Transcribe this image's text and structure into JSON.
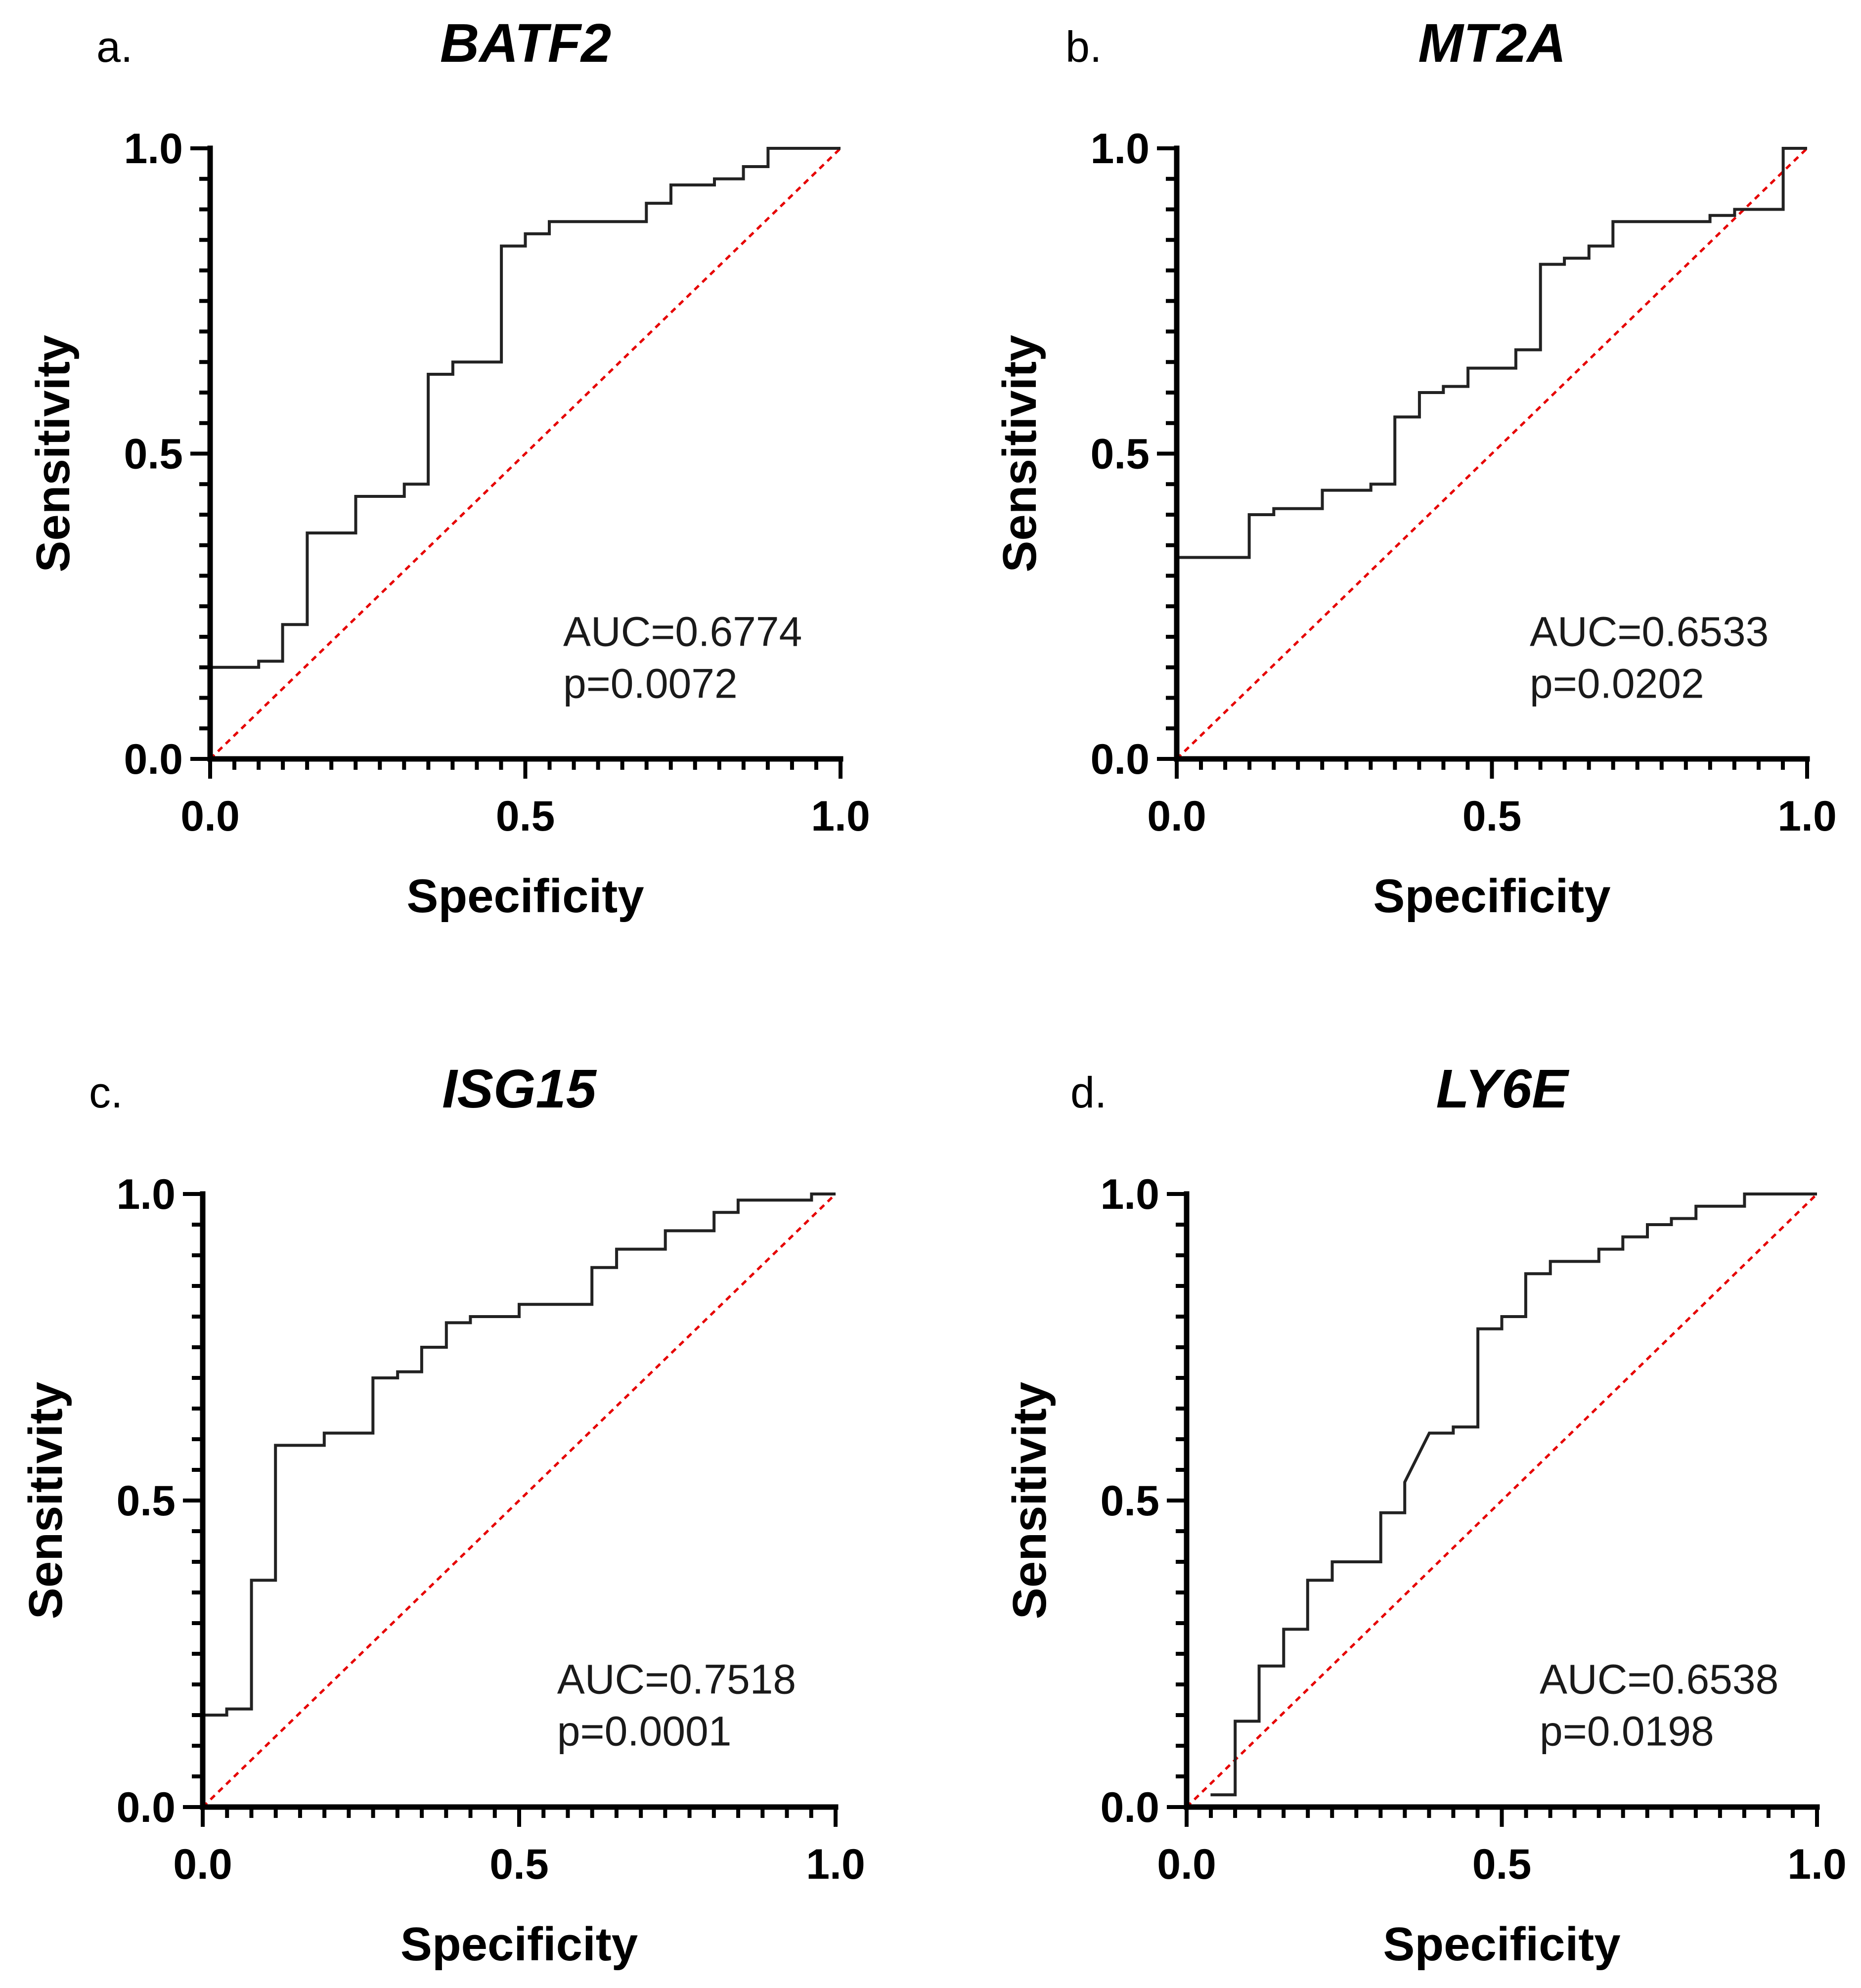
{
  "chart_data": [
    {
      "type": "line",
      "panel_label": "a.",
      "title": "BATF2",
      "xlabel": "Specificity",
      "ylabel": "Sensitivity",
      "xlim": [
        0,
        1
      ],
      "ylim": [
        0,
        1
      ],
      "x_ticks": [
        "0.0",
        "0.5",
        "1.0"
      ],
      "y_ticks": [
        "0.0",
        "0.5",
        "1.0"
      ],
      "annotation": {
        "auc": "AUC=0.6774",
        "p": "p=0.0072"
      },
      "reference_line": {
        "x": [
          0,
          1
        ],
        "y": [
          0,
          1
        ]
      },
      "series": [
        {
          "name": "ROC",
          "x": [
            0,
            0.077,
            0.077,
            0.115,
            0.115,
            0.154,
            0.154,
            0.231,
            0.231,
            0.308,
            0.308,
            0.346,
            0.346,
            0.385,
            0.385,
            0.462,
            0.462,
            0.5,
            0.5,
            0.538,
            0.538,
            0.692,
            0.692,
            0.731,
            0.731,
            0.8,
            0.8,
            0.846,
            0.846,
            0.885,
            0.885,
            1.0
          ],
          "y": [
            0.15,
            0.15,
            0.16,
            0.16,
            0.22,
            0.22,
            0.37,
            0.37,
            0.43,
            0.43,
            0.45,
            0.45,
            0.63,
            0.63,
            0.65,
            0.65,
            0.84,
            0.84,
            0.86,
            0.86,
            0.88,
            0.88,
            0.91,
            0.91,
            0.94,
            0.94,
            0.95,
            0.95,
            0.97,
            0.97,
            1.0,
            1.0
          ]
        }
      ]
    },
    {
      "type": "line",
      "panel_label": "b.",
      "title": "MT2A",
      "xlabel": "Specificity",
      "ylabel": "Sensitivity",
      "xlim": [
        0,
        1
      ],
      "ylim": [
        0,
        1
      ],
      "x_ticks": [
        "0.0",
        "0.5",
        "1.0"
      ],
      "y_ticks": [
        "0.0",
        "0.5",
        "1.0"
      ],
      "annotation": {
        "auc": "AUC=0.6533",
        "p": "p=0.0202"
      },
      "reference_line": {
        "x": [
          0,
          1
        ],
        "y": [
          0,
          1
        ]
      },
      "series": [
        {
          "name": "ROC",
          "x": [
            0,
            0.115,
            0.115,
            0.154,
            0.154,
            0.231,
            0.231,
            0.308,
            0.308,
            0.346,
            0.346,
            0.385,
            0.385,
            0.423,
            0.423,
            0.462,
            0.462,
            0.538,
            0.538,
            0.577,
            0.577,
            0.615,
            0.615,
            0.654,
            0.654,
            0.692,
            0.692,
            0.846,
            0.846,
            0.885,
            0.885,
            0.962,
            0.962,
            1.0
          ],
          "y": [
            0.33,
            0.33,
            0.4,
            0.4,
            0.41,
            0.41,
            0.44,
            0.44,
            0.45,
            0.45,
            0.56,
            0.56,
            0.6,
            0.6,
            0.61,
            0.61,
            0.64,
            0.64,
            0.67,
            0.67,
            0.81,
            0.81,
            0.82,
            0.82,
            0.84,
            0.84,
            0.88,
            0.88,
            0.89,
            0.89,
            0.9,
            0.9,
            1.0,
            1.0
          ]
        }
      ]
    },
    {
      "type": "line",
      "panel_label": "c.",
      "title": "ISG15",
      "xlabel": "Specificity",
      "ylabel": "Sensitivity",
      "xlim": [
        0,
        1
      ],
      "ylim": [
        0,
        1
      ],
      "x_ticks": [
        "0.0",
        "0.5",
        "1.0"
      ],
      "y_ticks": [
        "0.0",
        "0.5",
        "1.0"
      ],
      "annotation": {
        "auc": "AUC=0.7518",
        "p": "p=0.0001"
      },
      "reference_line": {
        "x": [
          0,
          1
        ],
        "y": [
          0,
          1
        ]
      },
      "series": [
        {
          "name": "ROC",
          "x": [
            0,
            0.038,
            0.038,
            0.077,
            0.077,
            0.115,
            0.115,
            0.192,
            0.192,
            0.269,
            0.269,
            0.308,
            0.308,
            0.346,
            0.346,
            0.385,
            0.385,
            0.423,
            0.423,
            0.5,
            0.5,
            0.615,
            0.615,
            0.654,
            0.654,
            0.731,
            0.731,
            0.808,
            0.808,
            0.846,
            0.846,
            0.962,
            0.962,
            1.0
          ],
          "y": [
            0.15,
            0.15,
            0.16,
            0.16,
            0.37,
            0.37,
            0.59,
            0.59,
            0.61,
            0.61,
            0.7,
            0.7,
            0.71,
            0.71,
            0.75,
            0.75,
            0.79,
            0.79,
            0.8,
            0.8,
            0.82,
            0.82,
            0.88,
            0.88,
            0.91,
            0.91,
            0.94,
            0.94,
            0.97,
            0.97,
            0.99,
            0.99,
            1.0,
            1.0
          ]
        }
      ]
    },
    {
      "type": "line",
      "panel_label": "d.",
      "title": "LY6E",
      "xlabel": "Specificity",
      "ylabel": "Sensitivity",
      "xlim": [
        0,
        1
      ],
      "ylim": [
        0,
        1
      ],
      "x_ticks": [
        "0.0",
        "0.5",
        "1.0"
      ],
      "y_ticks": [
        "0.0",
        "0.5",
        "1.0"
      ],
      "annotation": {
        "auc": "AUC=0.6538",
        "p": "p=0.0198"
      },
      "reference_line": {
        "x": [
          0,
          1
        ],
        "y": [
          0,
          1
        ]
      },
      "series": [
        {
          "name": "ROC",
          "x": [
            0.038,
            0.077,
            0.077,
            0.115,
            0.115,
            0.154,
            0.154,
            0.192,
            0.192,
            0.231,
            0.231,
            0.308,
            0.308,
            0.346,
            0.346,
            0.385,
            0.423,
            0.423,
            0.462,
            0.462,
            0.5,
            0.5,
            0.538,
            0.538,
            0.577,
            0.577,
            0.654,
            0.654,
            0.692,
            0.692,
            0.731,
            0.731,
            0.769,
            0.769,
            0.808,
            0.808,
            0.885,
            0.885,
            1.0
          ],
          "y": [
            0.02,
            0.02,
            0.14,
            0.14,
            0.23,
            0.23,
            0.29,
            0.29,
            0.37,
            0.37,
            0.4,
            0.4,
            0.48,
            0.48,
            0.53,
            0.61,
            0.61,
            0.62,
            0.62,
            0.78,
            0.78,
            0.8,
            0.8,
            0.87,
            0.87,
            0.89,
            0.89,
            0.91,
            0.91,
            0.93,
            0.93,
            0.95,
            0.95,
            0.96,
            0.96,
            0.98,
            0.98,
            1.0,
            1.0
          ]
        }
      ]
    }
  ]
}
